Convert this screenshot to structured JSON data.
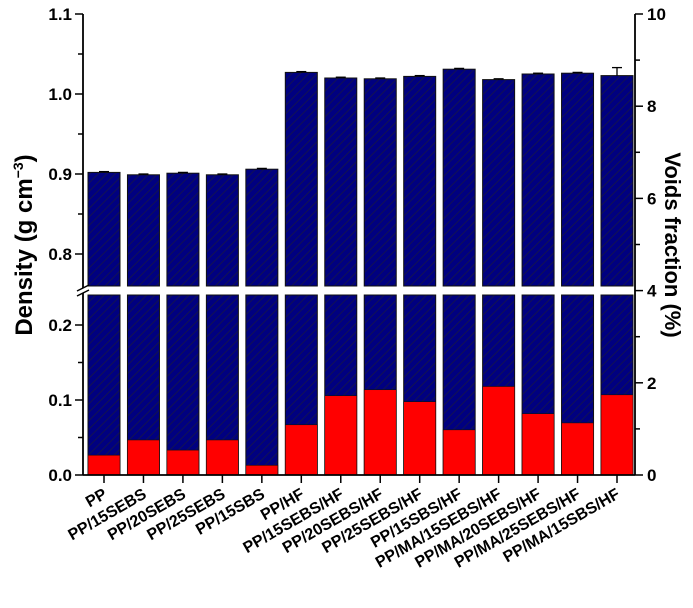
{
  "chart_data": {
    "type": "bar",
    "categories": [
      "PP",
      "PP/15SEBS",
      "PP/20SEBS",
      "PP/25SEBS",
      "PP/15SBS",
      "PP/HF",
      "PP/15SEBS/HF",
      "PP/20SEBS/HF",
      "PP/25SEBS/HF",
      "PP/15SBS/HF",
      "PP/MA/15SEBS/HF",
      "PP/MA/20SEBS/HF",
      "PP/MA/25SEBS/HF",
      "PP/MA/15SBS/HF"
    ],
    "series": [
      {
        "axis": "left",
        "color": "#000080",
        "pattern": "diagonal-hatch",
        "values": [
          0.902,
          0.899,
          0.901,
          0.899,
          0.906,
          1.027,
          1.02,
          1.019,
          1.022,
          1.031,
          1.018,
          1.025,
          1.026,
          1.023
        ],
        "errors": [
          0.001,
          0.001,
          0.001,
          0.001,
          0.001,
          0.001,
          0.001,
          0.001,
          0.001,
          0.001,
          0.001,
          0.001,
          0.001,
          0.01
        ]
      },
      {
        "axis": "right",
        "color": "#ff0000",
        "values": [
          0.43,
          0.76,
          0.54,
          0.76,
          0.21,
          1.09,
          1.72,
          1.85,
          1.59,
          0.98,
          1.92,
          1.33,
          1.13,
          1.74
        ]
      }
    ],
    "ylabel_left": "Density (g cm",
    "ylabel_left_sup": "−3",
    "ylabel_left_end": ")",
    "ylabel_right": "Voids fraction (%)",
    "ylim_left_lower": [
      0,
      0.24
    ],
    "ylim_left_upper": [
      0.76,
      1.1
    ],
    "axis_break": true,
    "ylim_right": [
      0,
      10
    ],
    "left_ticks_upper": [
      "0.8",
      "0.9",
      "1.0",
      "1.1"
    ],
    "left_ticks_lower": [
      "0.0",
      "0.1",
      "0.2"
    ],
    "right_ticks": [
      "0",
      "2",
      "4",
      "6",
      "8",
      "10"
    ],
    "grid": false
  }
}
